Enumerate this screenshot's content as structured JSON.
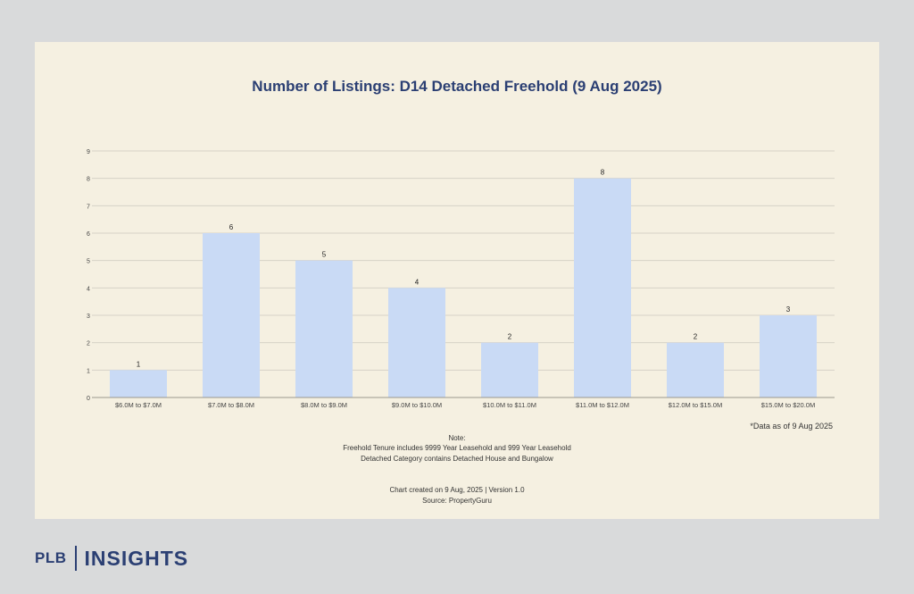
{
  "brand": {
    "prefix": "PLB",
    "name": "INSIGHTS"
  },
  "as_of": "*Data as of 9 Aug 2025",
  "notes": {
    "heading": "Note:",
    "line1": "Freehold Tenure includes 9999 Year Leasehold and 999 Year Leasehold",
    "line2": "Detached Category contains Detached House and Bungalow"
  },
  "footer": {
    "created": "Chart created on 9 Aug, 2025 | Version 1.0",
    "source": "Source: PropertyGuru"
  },
  "chart_data": {
    "type": "bar",
    "title": "Number of Listings: D14 Detached Freehold (9 Aug 2025)",
    "categories": [
      "$6.0M to $7.0M",
      "$7.0M to $8.0M",
      "$8.0M to $9.0M",
      "$9.0M to $10.0M",
      "$10.0M to $11.0M",
      "$11.0M to $12.0M",
      "$12.0M to $15.0M",
      "$15.0M to $20.0M"
    ],
    "values": [
      1,
      6,
      5,
      4,
      2,
      8,
      2,
      3
    ],
    "ylim": [
      0,
      9
    ],
    "yticks": [
      0,
      1,
      2,
      3,
      4,
      5,
      6,
      7,
      8,
      9
    ],
    "xlabel": "",
    "ylabel": "",
    "grid": true,
    "bar_color": "#c9daf5",
    "data_labels": true
  }
}
